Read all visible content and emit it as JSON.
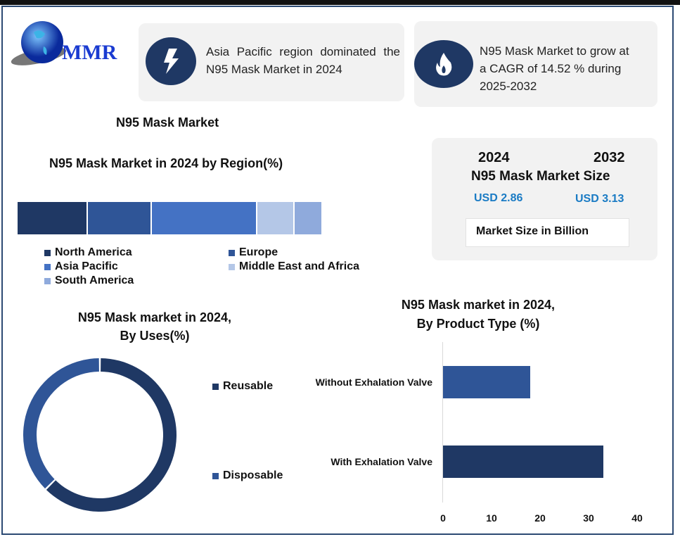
{
  "logo": {
    "text": "MMR"
  },
  "highlights": [
    {
      "icon": "lightning-icon",
      "text": "Asia Pacific region dominated the N95 Mask Market in 2024"
    },
    {
      "icon": "flame-icon",
      "text_lines": [
        "N95 Mask Market to grow at",
        "a CAGR of 14.52 % during",
        "2025-2032"
      ]
    }
  ],
  "main_title": "N95 Mask Market",
  "market_size": {
    "year_start": "2024",
    "year_end": "2032",
    "title": "N95 Mask Market Size",
    "value_start": "USD 2.86",
    "value_end": "USD 3.13",
    "unit_note": "Market Size in Billion",
    "value_color": "#1a7bc4"
  },
  "chart_data": [
    {
      "type": "bar",
      "orientation": "stacked-horizontal",
      "title": "N95 Mask Market in 2024 by Region(%)",
      "categories": [
        "North America",
        "Europe",
        "Asia Pacific",
        "Middle East and Africa",
        "South America"
      ],
      "values": [
        23,
        21,
        35,
        12,
        9
      ],
      "colors": [
        "#1f3864",
        "#2f5597",
        "#4472c4",
        "#b4c7e7",
        "#8faadc"
      ],
      "legend": "bottom"
    },
    {
      "type": "pie",
      "variant": "donut",
      "title_lines": [
        "N95 Mask market in 2024,",
        "By Uses(%)"
      ],
      "categories": [
        "Reusable",
        "Disposable"
      ],
      "values": [
        62.5,
        37.5
      ],
      "colors": [
        "#1f3864",
        "#2f5597"
      ],
      "legend": "right"
    },
    {
      "type": "bar",
      "orientation": "horizontal",
      "title_lines": [
        "N95 Mask market in 2024,",
        "By Product Type (%)"
      ],
      "categories": [
        "Without Exhalation Valve",
        "With Exhalation Valve"
      ],
      "values": [
        18,
        33
      ],
      "colors": [
        "#2f5597",
        "#1f3864"
      ],
      "xlim": [
        0,
        40
      ],
      "xticks": [
        "0",
        "10",
        "20",
        "30",
        "40"
      ]
    }
  ]
}
